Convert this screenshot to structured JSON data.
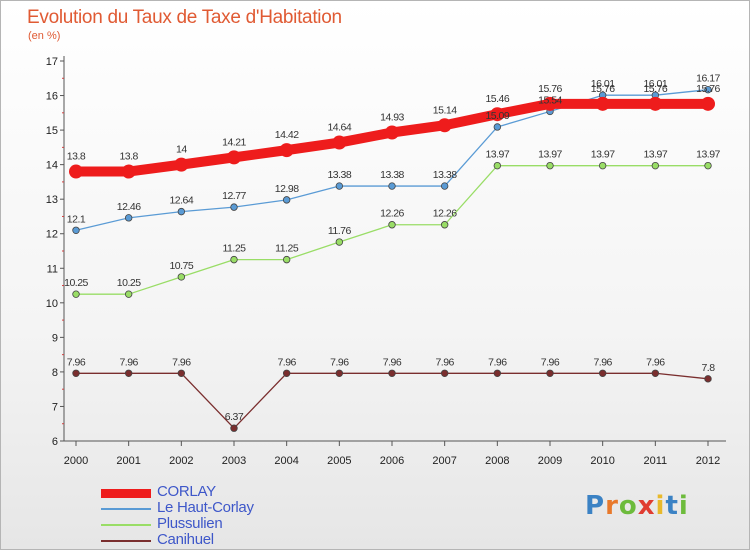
{
  "title": "Evolution du Taux de Taxe d'Habitation",
  "unit": "(en %)",
  "brand": {
    "letters": [
      {
        "ch": "P",
        "color": "#3b82c4"
      },
      {
        "ch": "r",
        "color": "#e8792b"
      },
      {
        "ch": "o",
        "color": "#6dbb3c"
      },
      {
        "ch": "x",
        "color": "#e03c31"
      },
      {
        "ch": "i",
        "color": "#e8b92b"
      },
      {
        "ch": "t",
        "color": "#3b82c4"
      },
      {
        "ch": "i",
        "color": "#6dbb3c"
      }
    ]
  },
  "chart_data": {
    "type": "line",
    "title": "Evolution du Taux de Taxe d'Habitation",
    "ylabel": "(en %)",
    "xlabel": "",
    "ylim": [
      6,
      17
    ],
    "yticks": [
      6,
      7,
      8,
      9,
      10,
      11,
      12,
      13,
      14,
      15,
      16,
      17
    ],
    "categories": [
      "2000",
      "2001",
      "2002",
      "2003",
      "2004",
      "2005",
      "2006",
      "2007",
      "2008",
      "2009",
      "2010",
      "2011",
      "2012"
    ],
    "grid": false,
    "legend": "bottom-left",
    "series": [
      {
        "name": "CORLAY",
        "color": "#ee1c1c",
        "values": [
          13.8,
          13.8,
          14,
          14.21,
          14.42,
          14.64,
          14.93,
          15.14,
          15.46,
          15.76,
          15.76,
          15.76,
          15.76
        ],
        "labels": [
          "13.8",
          "13.8",
          "14",
          "14.21",
          "14.42",
          "14.64",
          "14.93",
          "15.14",
          "15.46",
          "15.76",
          "15.76",
          "15.76",
          "15.76"
        ]
      },
      {
        "name": "Le Haut-Corlay",
        "color": "#5a9bd5",
        "values": [
          12.1,
          12.46,
          12.64,
          12.77,
          12.98,
          13.38,
          13.38,
          13.38,
          15.09,
          15.54,
          16.01,
          16.01,
          16.17
        ],
        "labels": [
          "12.1",
          "12.46",
          "12.64",
          "12.77",
          "12.98",
          "13.38",
          "13.38",
          "13.38",
          "15.09",
          "15.54",
          "16.01",
          "16.01",
          "16.17"
        ]
      },
      {
        "name": "Plussulien",
        "color": "#99dd66",
        "values": [
          10.25,
          10.25,
          10.75,
          11.25,
          11.25,
          11.76,
          12.26,
          12.26,
          13.97,
          13.97,
          13.97,
          13.97,
          13.97
        ],
        "labels": [
          "10.25",
          "10.25",
          "10.75",
          "11.25",
          "11.25",
          "11.76",
          "12.26",
          "12.26",
          "13.97",
          "13.97",
          "13.97",
          "13.97",
          "13.97"
        ]
      },
      {
        "name": "Canihuel",
        "color": "#7a2e2e",
        "values": [
          7.96,
          7.96,
          7.96,
          6.37,
          7.96,
          7.96,
          7.96,
          7.96,
          7.96,
          7.96,
          7.96,
          7.96,
          7.8
        ],
        "labels": [
          "7.96",
          "7.96",
          "7.96",
          "6.37",
          "7.96",
          "7.96",
          "7.96",
          "7.96",
          "7.96",
          "7.96",
          "7.96",
          "7.96",
          "7.8"
        ]
      }
    ]
  }
}
